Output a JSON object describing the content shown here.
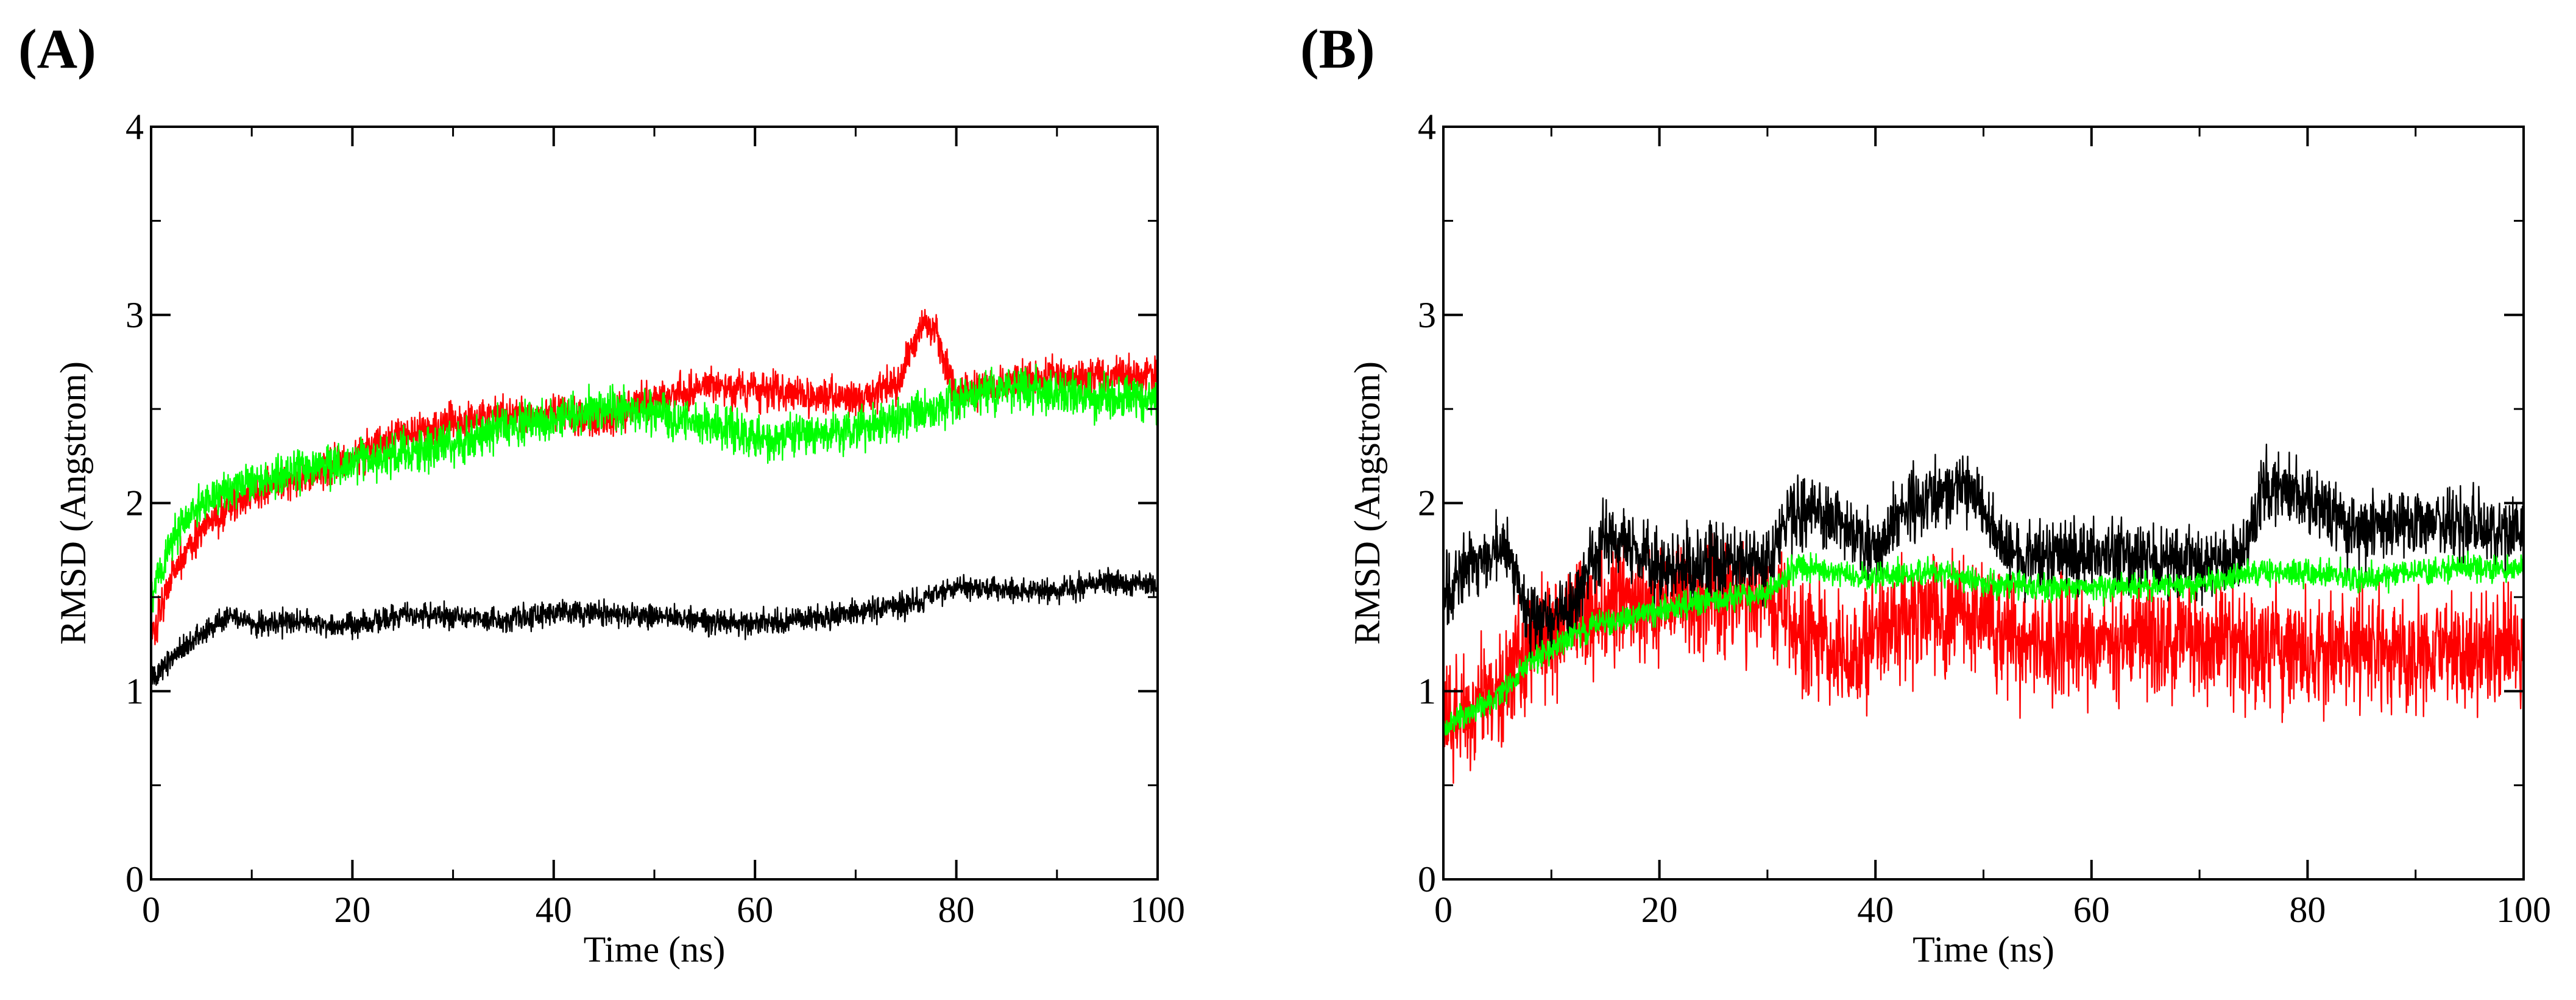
{
  "chart_data": [
    {
      "panel_label": "(A)",
      "type": "line",
      "xlabel": "Time (ns)",
      "ylabel": "RMSD (Angstrom)",
      "xlim": [
        0,
        100
      ],
      "ylim": [
        0,
        4
      ],
      "xticks": [
        0,
        20,
        40,
        60,
        80,
        100
      ],
      "yticks": [
        0,
        1,
        2,
        3,
        4
      ],
      "grid": false,
      "series": [
        {
          "name": "black",
          "color": "#000000",
          "noise": 0.045,
          "points": [
            [
              0,
              1.05
            ],
            [
              2,
              1.18
            ],
            [
              4,
              1.27
            ],
            [
              6,
              1.33
            ],
            [
              8,
              1.42
            ],
            [
              10,
              1.36
            ],
            [
              15,
              1.37
            ],
            [
              20,
              1.34
            ],
            [
              25,
              1.41
            ],
            [
              30,
              1.4
            ],
            [
              35,
              1.38
            ],
            [
              40,
              1.42
            ],
            [
              45,
              1.41
            ],
            [
              50,
              1.4
            ],
            [
              55,
              1.37
            ],
            [
              60,
              1.36
            ],
            [
              65,
              1.38
            ],
            [
              70,
              1.42
            ],
            [
              75,
              1.46
            ],
            [
              80,
              1.55
            ],
            [
              85,
              1.54
            ],
            [
              90,
              1.53
            ],
            [
              95,
              1.58
            ],
            [
              100,
              1.56
            ]
          ]
        },
        {
          "name": "red",
          "color": "#ff0000",
          "noise": 0.07,
          "points": [
            [
              0,
              1.28
            ],
            [
              2,
              1.62
            ],
            [
              4,
              1.8
            ],
            [
              6,
              1.9
            ],
            [
              8,
              1.98
            ],
            [
              10,
              2.05
            ],
            [
              15,
              2.14
            ],
            [
              20,
              2.24
            ],
            [
              25,
              2.38
            ],
            [
              30,
              2.42
            ],
            [
              35,
              2.46
            ],
            [
              40,
              2.48
            ],
            [
              45,
              2.44
            ],
            [
              50,
              2.55
            ],
            [
              55,
              2.62
            ],
            [
              60,
              2.6
            ],
            [
              65,
              2.57
            ],
            [
              70,
              2.56
            ],
            [
              74,
              2.62
            ],
            [
              77,
              2.98
            ],
            [
              78,
              2.9
            ],
            [
              80,
              2.58
            ],
            [
              85,
              2.64
            ],
            [
              90,
              2.66
            ],
            [
              95,
              2.67
            ],
            [
              100,
              2.68
            ]
          ]
        },
        {
          "name": "green",
          "color": "#00ff00",
          "noise": 0.08,
          "points": [
            [
              0,
              1.5
            ],
            [
              2,
              1.8
            ],
            [
              4,
              1.95
            ],
            [
              6,
              2.02
            ],
            [
              8,
              2.08
            ],
            [
              10,
              2.12
            ],
            [
              15,
              2.18
            ],
            [
              20,
              2.22
            ],
            [
              25,
              2.26
            ],
            [
              30,
              2.32
            ],
            [
              35,
              2.4
            ],
            [
              40,
              2.45
            ],
            [
              45,
              2.52
            ],
            [
              50,
              2.47
            ],
            [
              55,
              2.42
            ],
            [
              60,
              2.35
            ],
            [
              65,
              2.37
            ],
            [
              70,
              2.4
            ],
            [
              75,
              2.45
            ],
            [
              80,
              2.56
            ],
            [
              85,
              2.62
            ],
            [
              90,
              2.58
            ],
            [
              95,
              2.56
            ],
            [
              100,
              2.55
            ]
          ]
        }
      ]
    },
    {
      "panel_label": "(B)",
      "type": "line",
      "xlabel": "Time (ns)",
      "ylabel": "RMSD (Angstrom)",
      "xlim": [
        0,
        100
      ],
      "ylim": [
        0,
        4
      ],
      "xticks": [
        0,
        20,
        40,
        60,
        80,
        100
      ],
      "yticks": [
        0,
        1,
        2,
        3,
        4
      ],
      "grid": false,
      "series": [
        {
          "name": "red",
          "color": "#ff0000",
          "noise": 0.22,
          "points": [
            [
              0,
              0.8
            ],
            [
              2,
              0.88
            ],
            [
              5,
              1.0
            ],
            [
              8,
              1.25
            ],
            [
              12,
              1.4
            ],
            [
              15,
              1.45
            ],
            [
              20,
              1.45
            ],
            [
              25,
              1.5
            ],
            [
              30,
              1.52
            ],
            [
              32,
              1.4
            ],
            [
              35,
              1.25
            ],
            [
              38,
              1.15
            ],
            [
              40,
              1.3
            ],
            [
              45,
              1.45
            ],
            [
              50,
              1.35
            ],
            [
              55,
              1.25
            ],
            [
              60,
              1.25
            ],
            [
              65,
              1.3
            ],
            [
              70,
              1.25
            ],
            [
              75,
              1.25
            ],
            [
              80,
              1.2
            ],
            [
              85,
              1.25
            ],
            [
              90,
              1.2
            ],
            [
              95,
              1.2
            ],
            [
              100,
              1.25
            ]
          ]
        },
        {
          "name": "black",
          "color": "#000000",
          "noise": 0.13,
          "points": [
            [
              0,
              1.5
            ],
            [
              2,
              1.65
            ],
            [
              4,
              1.72
            ],
            [
              6,
              1.75
            ],
            [
              8,
              1.35
            ],
            [
              12,
              1.45
            ],
            [
              15,
              1.85
            ],
            [
              20,
              1.65
            ],
            [
              25,
              1.7
            ],
            [
              30,
              1.65
            ],
            [
              32,
              1.95
            ],
            [
              35,
              1.95
            ],
            [
              40,
              1.75
            ],
            [
              43,
              2.0
            ],
            [
              48,
              2.1
            ],
            [
              50,
              2.0
            ],
            [
              52,
              1.75
            ],
            [
              55,
              1.7
            ],
            [
              60,
              1.75
            ],
            [
              65,
              1.7
            ],
            [
              70,
              1.65
            ],
            [
              74,
              1.7
            ],
            [
              76,
              2.1
            ],
            [
              80,
              2.0
            ],
            [
              85,
              1.85
            ],
            [
              90,
              1.9
            ],
            [
              95,
              1.88
            ],
            [
              100,
              1.85
            ]
          ]
        },
        {
          "name": "green",
          "color": "#00ff00",
          "noise": 0.05,
          "points": [
            [
              0,
              0.8
            ],
            [
              3,
              0.9
            ],
            [
              6,
              1.02
            ],
            [
              8,
              1.15
            ],
            [
              12,
              1.3
            ],
            [
              15,
              1.37
            ],
            [
              20,
              1.43
            ],
            [
              25,
              1.48
            ],
            [
              30,
              1.52
            ],
            [
              33,
              1.67
            ],
            [
              36,
              1.63
            ],
            [
              40,
              1.6
            ],
            [
              45,
              1.63
            ],
            [
              50,
              1.58
            ],
            [
              53,
              1.57
            ],
            [
              56,
              1.55
            ],
            [
              60,
              1.55
            ],
            [
              65,
              1.55
            ],
            [
              70,
              1.57
            ],
            [
              75,
              1.63
            ],
            [
              80,
              1.63
            ],
            [
              85,
              1.6
            ],
            [
              90,
              1.63
            ],
            [
              95,
              1.65
            ],
            [
              100,
              1.65
            ]
          ]
        }
      ]
    }
  ]
}
